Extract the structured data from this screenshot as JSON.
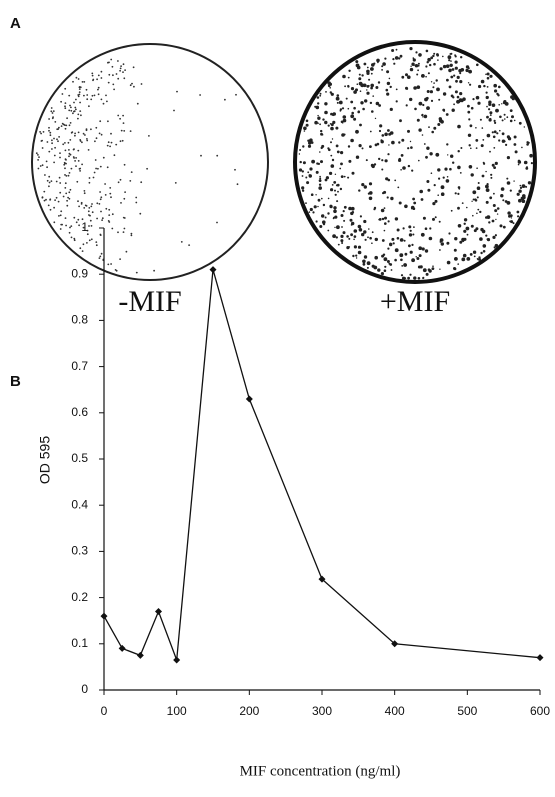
{
  "panel_a": {
    "label": "A",
    "images": [
      {
        "label": "-MIF"
      },
      {
        "label": "+MIF"
      }
    ]
  },
  "chart_data": {
    "type": "line",
    "panel_label": "B",
    "x": [
      0,
      25,
      50,
      75,
      100,
      150,
      200,
      300,
      400,
      600
    ],
    "values": [
      0.16,
      0.09,
      0.075,
      0.17,
      0.065,
      0.91,
      0.63,
      0.24,
      0.1,
      0.07
    ],
    "color": "#111111",
    "xlim": [
      0,
      600
    ],
    "ylim": [
      0,
      1
    ],
    "xticks": [
      0,
      100,
      200,
      300,
      400,
      500,
      600
    ],
    "yticks": [
      0,
      0.1,
      0.2,
      0.3,
      0.4,
      0.5,
      0.6,
      0.7,
      0.8,
      0.9,
      1
    ],
    "xlabel": "MIF concentration (ng/ml)",
    "ylabel": "OD 595"
  }
}
